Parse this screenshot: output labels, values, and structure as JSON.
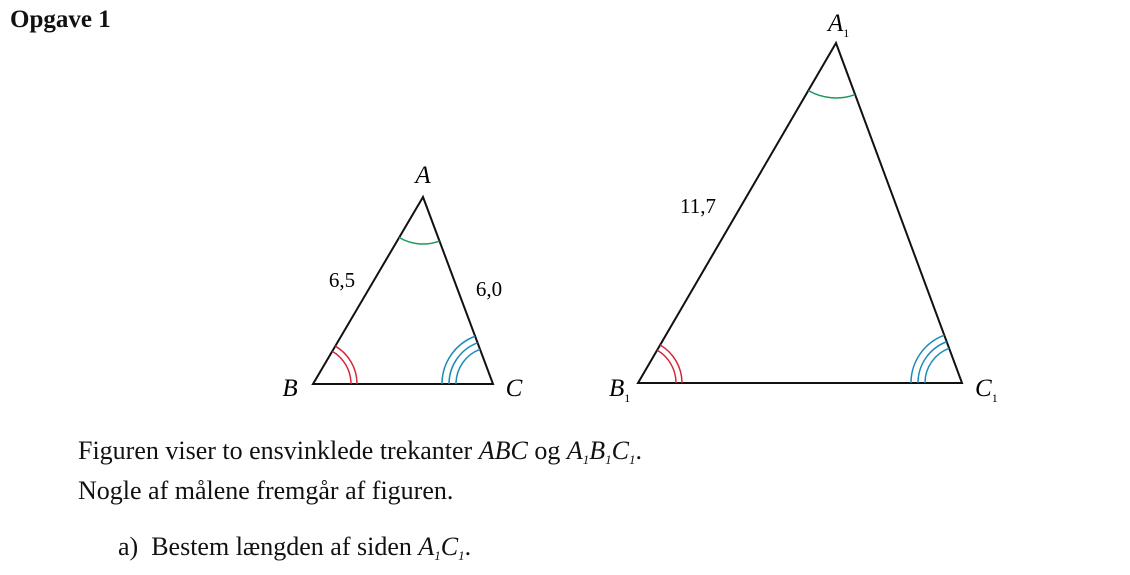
{
  "header": {
    "title": "Opgave 1"
  },
  "figure": {
    "small": {
      "A": "A",
      "B": "B",
      "C": "C",
      "AB": "6,5",
      "AC": "6,0"
    },
    "large": {
      "A": {
        "letter": "A",
        "sub": "1"
      },
      "B": {
        "letter": "B",
        "sub": "1"
      },
      "C": {
        "letter": "C",
        "sub": "1"
      },
      "AB": "11,7"
    }
  },
  "body": {
    "sentence1": {
      "text": "Figuren viser to ensvinklede trekanter",
      "triangle1": "ABC",
      "conj": "og",
      "triangle2": [
        {
          "letter": "A",
          "sub": "1"
        },
        {
          "letter": "B",
          "sub": "1"
        },
        {
          "letter": "C",
          "sub": "1"
        }
      ],
      "end": "."
    },
    "sentence2": "Nogle af målene fremgår af figuren.",
    "question": {
      "label": "a)",
      "text": "Bestem længden af siden",
      "side": [
        {
          "letter": "A",
          "sub": "1"
        },
        {
          "letter": "C",
          "sub": "1"
        }
      ],
      "end": "."
    }
  }
}
